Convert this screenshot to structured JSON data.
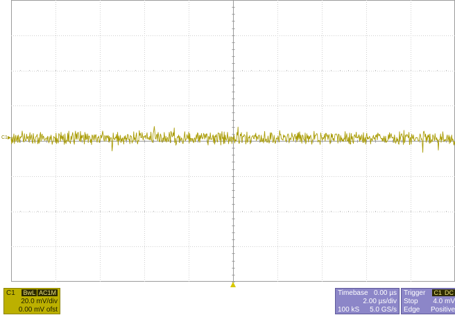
{
  "channel": {
    "name": "C1",
    "marker_label": "C1",
    "bandwidth_tag": "BwL",
    "coupling_tag": "AC1M",
    "scale": "20.0 mV/div",
    "offset": "0.00 mV ofst",
    "trace_color": "#a89a00",
    "panel_color": "#bcb000"
  },
  "timebase": {
    "title": "Timebase",
    "delay": "0.00 µs",
    "scale": "2.00 µs/div",
    "samples": "100 kS",
    "sample_rate": "5.0 GS/s",
    "panel_color": "#8c86c8"
  },
  "trigger": {
    "title": "Trigger",
    "source_tag": "C1",
    "coupling_tag": "DC",
    "mode": "Stop",
    "level": "4.0 mV",
    "type": "Edge",
    "slope": "Positive"
  },
  "graticule": {
    "divisions_x": 10,
    "divisions_y": 8,
    "grid_color": "#cfcfcf",
    "subdivisions": 5
  }
}
